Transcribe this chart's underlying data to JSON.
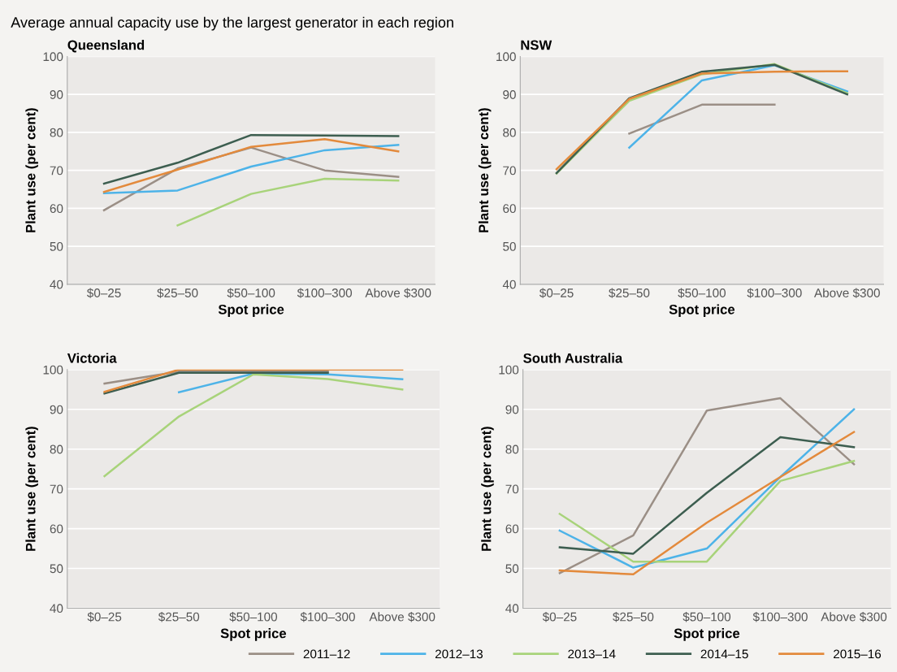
{
  "chart_data": [
    {
      "type": "line",
      "title": "Queensland",
      "annotations": [
        "Average annual capacity use by the largest generator in each region"
      ],
      "xlabel": "Spot price",
      "ylabel": "Plant use (per cent)",
      "categories": [
        "$0–25",
        "$25–50",
        "$50–100",
        "$100–300",
        "Above $300"
      ],
      "ylim": [
        40,
        100
      ],
      "yticks": [
        40,
        50,
        60,
        70,
        80,
        90,
        100
      ],
      "grid": "y",
      "series": [
        {
          "color": "#9b8f86",
          "values": [
            59.5,
            70.5,
            76,
            70,
            68.3
          ]
        },
        {
          "color": "#4db3e8",
          "values": [
            64,
            64.7,
            71,
            75.3,
            76.7
          ]
        },
        {
          "color": "#a8d37a",
          "values": [
            null,
            55.5,
            63.8,
            67.8,
            67.3
          ]
        },
        {
          "color": "#3d5e50",
          "values": [
            66.5,
            72,
            79.3,
            79.2,
            79
          ]
        },
        {
          "color": "#e38a3c",
          "values": [
            64.3,
            70.2,
            76.2,
            78.2,
            75
          ]
        }
      ]
    },
    {
      "type": "line",
      "title": "NSW",
      "xlabel": "Spot price",
      "ylabel": "Plant use (per cent)",
      "categories": [
        "$0–25",
        "$25–50",
        "$50–100",
        "$100–300",
        "Above $300"
      ],
      "ylim": [
        40,
        100
      ],
      "yticks": [
        40,
        50,
        60,
        70,
        80,
        90,
        100
      ],
      "grid": "y",
      "series": [
        {
          "color": "#9b8f86",
          "values": [
            null,
            79.7,
            87.3,
            87.3,
            null
          ]
        },
        {
          "color": "#4db3e8",
          "values": [
            null,
            76,
            93.7,
            97.7,
            90.8
          ]
        },
        {
          "color": "#a8d37a",
          "values": [
            69.2,
            88.3,
            95.3,
            98,
            90.3
          ]
        },
        {
          "color": "#3d5e50",
          "values": [
            69.3,
            89,
            96,
            97.8,
            90
          ]
        },
        {
          "color": "#e38a3c",
          "values": [
            70.3,
            88.8,
            95.5,
            96,
            96.1
          ]
        }
      ]
    },
    {
      "type": "line",
      "title": "Victoria",
      "xlabel": "Spot price",
      "ylabel": "Plant use (per cent)",
      "categories": [
        "$0–25",
        "$25–50",
        "$50–100",
        "$100–300",
        "Above $300"
      ],
      "ylim": [
        40,
        100
      ],
      "yticks": [
        40,
        50,
        60,
        70,
        80,
        90,
        100
      ],
      "grid": "y",
      "series": [
        {
          "color": "#9b8f86",
          "values": [
            96.5,
            99.5,
            99.5,
            99.5,
            null
          ]
        },
        {
          "color": "#4db3e8",
          "values": [
            null,
            94.3,
            99,
            98.8,
            97.6
          ]
        },
        {
          "color": "#a8d37a",
          "values": [
            73.2,
            88.2,
            98.8,
            97.6,
            95
          ]
        },
        {
          "color": "#3d5e50",
          "values": [
            94,
            99.2,
            99.2,
            99.2,
            null
          ]
        },
        {
          "color": "#e38a3c",
          "values": [
            94.4,
            100,
            100,
            100,
            100
          ]
        }
      ]
    },
    {
      "type": "line",
      "title": "South Australia",
      "xlabel": "Spot price",
      "ylabel": "Plant use (per cent)",
      "categories": [
        "$0–25",
        "$25–50",
        "$50–100",
        "$100–300",
        "Above $300"
      ],
      "ylim": [
        40,
        100
      ],
      "yticks": [
        40,
        50,
        60,
        70,
        80,
        90,
        100
      ],
      "grid": "y",
      "legend": "bottom",
      "series": [
        {
          "name": "2011–12",
          "color": "#9b8f86",
          "values": [
            48.8,
            58.3,
            89.7,
            92.8,
            76.2
          ]
        },
        {
          "name": "2012–13",
          "color": "#4db3e8",
          "values": [
            59.5,
            50.2,
            55,
            73,
            90
          ]
        },
        {
          "name": "2013–14",
          "color": "#a8d37a",
          "values": [
            63.7,
            51.7,
            51.7,
            72,
            77
          ]
        },
        {
          "name": "2014–15",
          "color": "#3d5e50",
          "values": [
            55.3,
            53.7,
            69,
            83,
            80.5
          ]
        },
        {
          "name": "2015–16",
          "color": "#e38a3c",
          "values": [
            49.5,
            48.5,
            61.5,
            73,
            84.3
          ]
        }
      ]
    }
  ]
}
